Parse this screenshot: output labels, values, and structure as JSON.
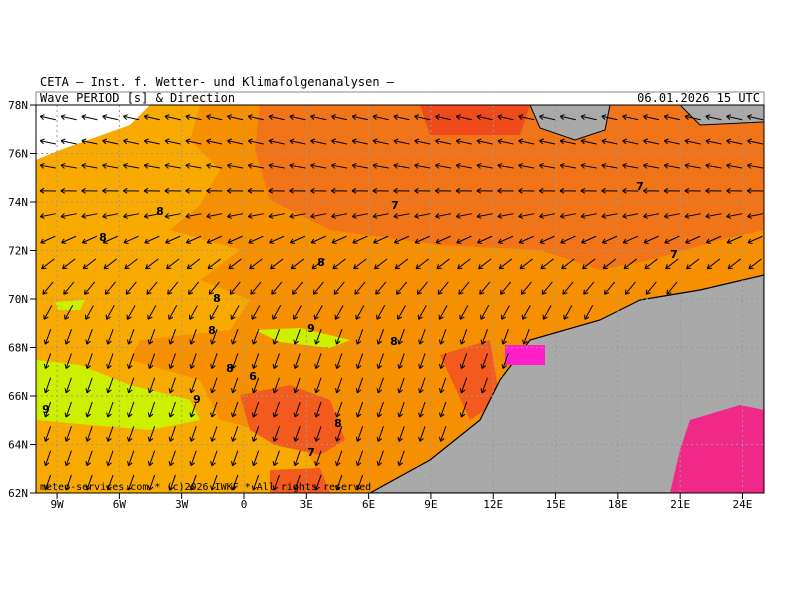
{
  "header": {
    "institute": "CETA – Inst. f. Wetter- und Klimafolgenanalysen –",
    "field": "Wave_PERIOD_[s]_&_Direction",
    "valid_time": "06.01.2026 15 UTC",
    "footer": "meteo-services.com * (c)2026 IWKF * All rights reserved"
  },
  "map": {
    "lat_ticks": [
      {
        "value": 78,
        "label": "78N"
      },
      {
        "value": 76,
        "label": "76N"
      },
      {
        "value": 74,
        "label": "74N"
      },
      {
        "value": 72,
        "label": "72N"
      },
      {
        "value": 70,
        "label": "70N"
      },
      {
        "value": 68,
        "label": "68N"
      },
      {
        "value": 66,
        "label": "66N"
      },
      {
        "value": 64,
        "label": "64N"
      },
      {
        "value": 62,
        "label": "62N"
      }
    ],
    "lon_ticks": [
      {
        "value": -9,
        "label": "9W"
      },
      {
        "value": -6,
        "label": "6W"
      },
      {
        "value": -3,
        "label": "3W"
      },
      {
        "value": 0,
        "label": "0"
      },
      {
        "value": 3,
        "label": "3E"
      },
      {
        "value": 6,
        "label": "6E"
      },
      {
        "value": 9,
        "label": "9E"
      },
      {
        "value": 12,
        "label": "12E"
      },
      {
        "value": 15,
        "label": "15E"
      },
      {
        "value": 18,
        "label": "18E"
      },
      {
        "value": 21,
        "label": "21E"
      },
      {
        "value": 24,
        "label": "24E"
      }
    ],
    "contour_labels": [
      8,
      8,
      8,
      8,
      8,
      9,
      8,
      7,
      9,
      9,
      7,
      6,
      8,
      7,
      8,
      7
    ]
  }
}
